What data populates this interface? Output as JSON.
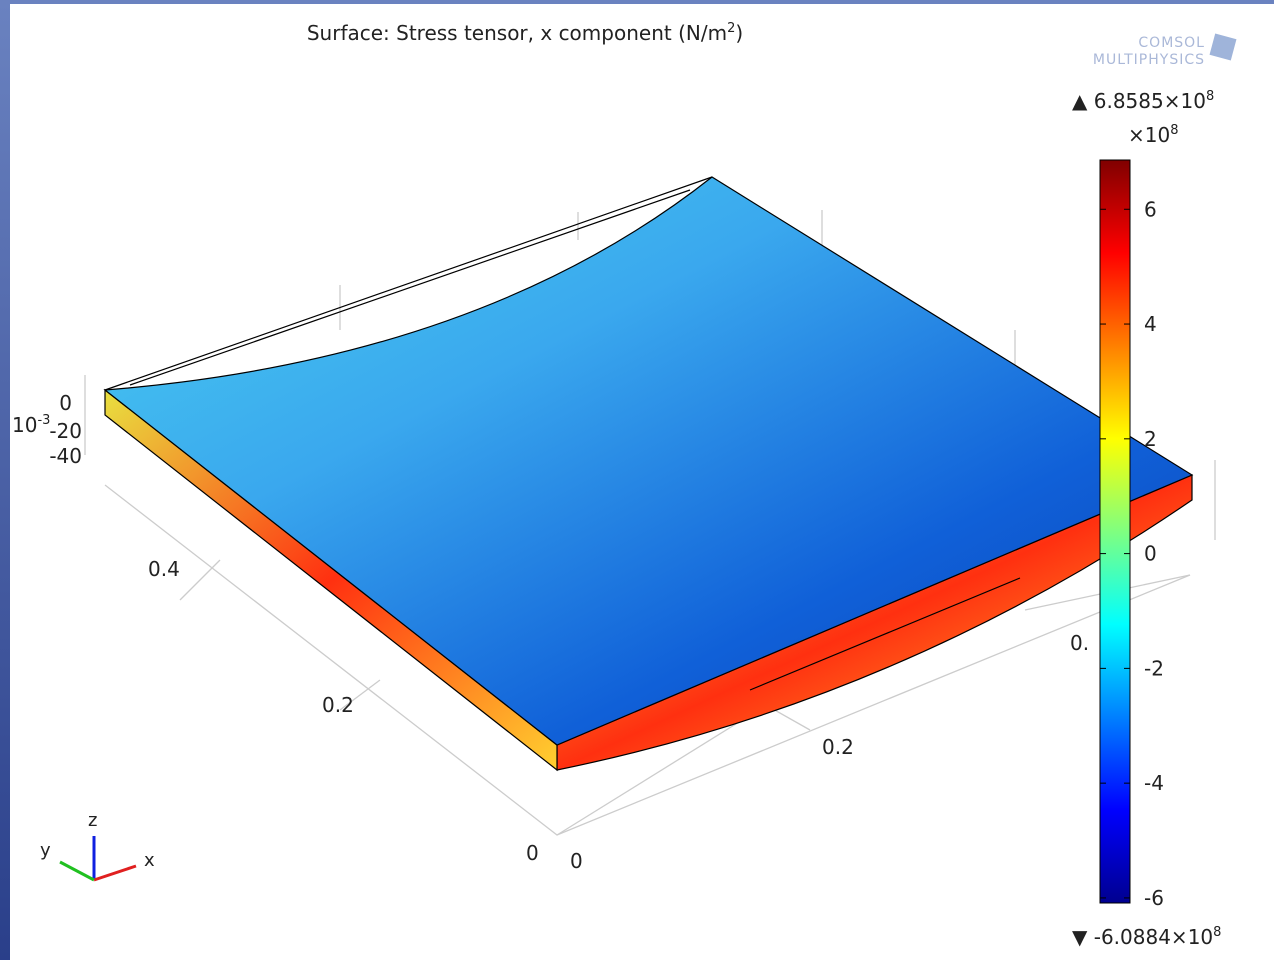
{
  "title": {
    "text": "Surface: Stress tensor, x component (N/m",
    "sup": "2",
    "close": ")"
  },
  "logo": {
    "line1": "COMSOL",
    "line2": "MULTIPHYSICS"
  },
  "colorbar": {
    "multiplier": {
      "text": "×10",
      "sup": "8"
    },
    "range": [
      -6.0884,
      6.8585
    ],
    "ticks": [
      -6,
      -4,
      -2,
      0,
      2,
      4,
      6
    ],
    "max_label": {
      "text": "▲ 6.8585×10",
      "sup": "8"
    },
    "min_label": {
      "text": "▼ -6.0884×10",
      "sup": "8"
    }
  },
  "axes": {
    "z_ticks": [
      "0",
      "-20",
      "-40"
    ],
    "z_multiplier": {
      "text": "10",
      "sup": "-3"
    },
    "y_ticks": [
      "0.4",
      "0.2",
      "0"
    ],
    "x_ticks": [
      "0",
      "0.2",
      "0."
    ]
  },
  "triad": {
    "x": "x",
    "y": "y",
    "z": "z"
  }
}
